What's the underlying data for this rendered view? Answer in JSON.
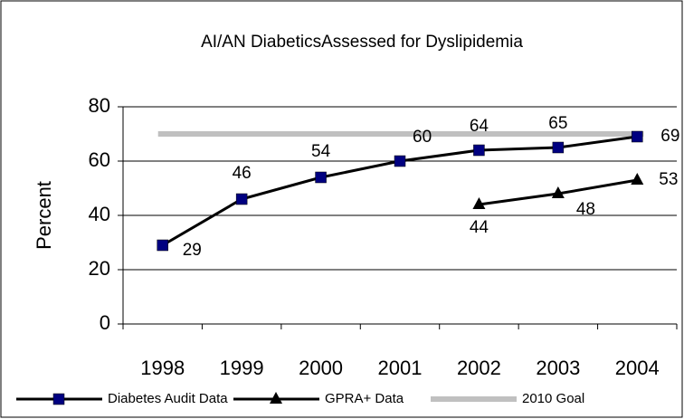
{
  "chart_data": {
    "type": "line",
    "title": "AI/AN DiabeticsAssessed for Dyslipidemia",
    "y_label": "Percent",
    "categories": [
      "1998",
      "1999",
      "2000",
      "2001",
      "2002",
      "2003",
      "2004"
    ],
    "series": [
      {
        "name": "Diabetes Audit Data",
        "color": "#000080",
        "marker": "square",
        "data_labels": true,
        "values": [
          29,
          46,
          54,
          60,
          64,
          65,
          69
        ]
      },
      {
        "name": "GPRA+ Data",
        "color": "#000000",
        "marker": "triangle",
        "data_labels": true,
        "values": [
          null,
          null,
          null,
          null,
          44,
          48,
          53
        ]
      },
      {
        "name": "2010 Goal",
        "color": "#c0c0c0",
        "marker": "none",
        "data_labels": false,
        "values": [
          70,
          70,
          70,
          70,
          70,
          70,
          70
        ]
      }
    ],
    "ylim": [
      0,
      80
    ],
    "yticks": [
      0,
      20,
      40,
      60,
      80
    ],
    "grid": true,
    "legend": "bottom"
  }
}
